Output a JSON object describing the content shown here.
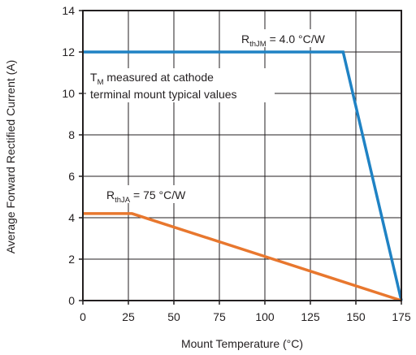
{
  "chart_data": {
    "type": "line",
    "xlabel": "Mount Temperature (°C)",
    "ylabel": "Average Forward Rectified Current (A)",
    "xlim": [
      0,
      175
    ],
    "ylim": [
      0,
      14
    ],
    "x_ticks": [
      "0",
      "25",
      "50",
      "75",
      "100",
      "125",
      "150",
      "175"
    ],
    "y_ticks": [
      "0",
      "2",
      "4",
      "6",
      "8",
      "10",
      "12",
      "14"
    ],
    "grid": true,
    "series": [
      {
        "color": "#1f82c4",
        "x": [
          0,
          143,
          175
        ],
        "y": [
          12,
          12,
          0
        ]
      },
      {
        "color": "#e8772e",
        "x": [
          0,
          27,
          175
        ],
        "y": [
          4.2,
          4.2,
          0
        ]
      }
    ],
    "annotations": [
      {
        "main": "R",
        "sub": "thJM",
        "rest": " = 4.0 °C/W"
      },
      {
        "main": "T",
        "sub": "M",
        "rest": " measured at cathode",
        "line2": "terminal mount typical values"
      },
      {
        "main": "R",
        "sub": "thJA",
        "rest": " = 75 °C/W"
      }
    ]
  }
}
